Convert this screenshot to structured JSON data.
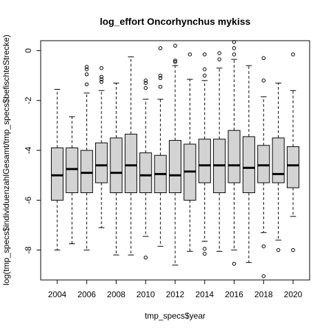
{
  "chart_data": {
    "type": "boxplot",
    "title": "log_effort Oncorhynchus mykiss",
    "xlabel": "tmp_specs$year",
    "ylabel": "log(tmp_specs$individuenzahlGesamt/tmp_specs$befischteStrecke)",
    "categories": [
      2004,
      2005,
      2006,
      2007,
      2008,
      2009,
      2010,
      2011,
      2012,
      2013,
      2014,
      2015,
      2016,
      2017,
      2018,
      2019,
      2020
    ],
    "x_tick_labels": [
      "2004",
      "2006",
      "2008",
      "2010",
      "2012",
      "2014",
      "2016",
      "2018",
      "2020"
    ],
    "y_ticks": [
      0,
      -2,
      -4,
      -6,
      -8
    ],
    "y_tick_labels": [
      "0",
      "-2",
      "-4",
      "-6",
      "-8"
    ],
    "ylim": [
      -9.2,
      0.4
    ],
    "box_color": "#d3d3d3",
    "boxes": [
      {
        "year": 2004,
        "whisker_low": -8.0,
        "q1": -6.0,
        "median": -5.0,
        "q3": -3.9,
        "whisker_high": -1.55,
        "outliers": []
      },
      {
        "year": 2005,
        "whisker_low": -7.75,
        "q1": -5.7,
        "median": -4.75,
        "q3": -3.9,
        "whisker_high": -2.65,
        "outliers": []
      },
      {
        "year": 2006,
        "whisker_low": -8.0,
        "q1": -5.7,
        "median": -4.9,
        "q3": -4.0,
        "whisker_high": -1.7,
        "outliers": [
          -0.65,
          -0.75,
          -0.95,
          -1.35
        ]
      },
      {
        "year": 2007,
        "whisker_low": -7.1,
        "q1": -5.3,
        "median": -4.6,
        "q3": -3.7,
        "whisker_high": -1.6,
        "outliers": [
          -0.7,
          -1.05,
          -1.15,
          -1.25
        ]
      },
      {
        "year": 2008,
        "whisker_low": -8.2,
        "q1": -5.7,
        "median": -4.9,
        "q3": -3.5,
        "whisker_high": -1.3,
        "outliers": []
      },
      {
        "year": 2009,
        "whisker_low": -8.2,
        "q1": -5.7,
        "median": -4.6,
        "q3": -3.35,
        "whisker_high": -0.25,
        "outliers": []
      },
      {
        "year": 2010,
        "whisker_low": -7.45,
        "q1": -5.7,
        "median": -5.0,
        "q3": -4.1,
        "whisker_high": -1.95,
        "outliers": [
          -1.2,
          -1.3,
          -1.5,
          -8.3
        ]
      },
      {
        "year": 2011,
        "whisker_low": -7.85,
        "q1": -5.7,
        "median": -4.95,
        "q3": -4.2,
        "whisker_high": -1.95,
        "outliers": [
          0.1,
          -1.0,
          -1.1,
          -1.45
        ]
      },
      {
        "year": 2012,
        "whisker_low": -8.6,
        "q1": -5.7,
        "median": -5.0,
        "q3": -3.6,
        "whisker_high": -0.6,
        "outliers": [
          0.2,
          -0.4,
          -0.45
        ]
      },
      {
        "year": 2013,
        "whisker_low": -8.05,
        "q1": -6.0,
        "median": -4.85,
        "q3": -3.75,
        "whisker_high": -1.15,
        "outliers": [
          -0.15
        ]
      },
      {
        "year": 2014,
        "whisker_low": -7.65,
        "q1": -5.3,
        "median": -4.6,
        "q3": -3.55,
        "whisker_high": -1.2,
        "outliers": [
          -0.15,
          -0.75,
          -1.0,
          -7.95,
          -8.15
        ]
      },
      {
        "year": 2015,
        "whisker_low": -8.05,
        "q1": -5.7,
        "median": -4.6,
        "q3": -3.55,
        "whisker_high": -0.7,
        "outliers": [
          -0.1,
          -0.35
        ]
      },
      {
        "year": 2016,
        "whisker_low": -8.0,
        "q1": -5.3,
        "median": -4.6,
        "q3": -3.2,
        "whisker_high": -0.35,
        "outliers": [
          0.35,
          0.1,
          -0.15,
          -8.55
        ]
      },
      {
        "year": 2017,
        "whisker_low": -8.5,
        "q1": -5.7,
        "median": -4.7,
        "q3": -3.45,
        "whisker_high": -0.6,
        "outliers": []
      },
      {
        "year": 2018,
        "whisker_low": -7.3,
        "q1": -5.3,
        "median": -4.6,
        "q3": -3.8,
        "whisker_high": -1.85,
        "outliers": [
          -0.3,
          -1.2,
          -7.85,
          -9.05
        ]
      },
      {
        "year": 2019,
        "whisker_low": -7.6,
        "q1": -5.3,
        "median": -4.95,
        "q3": -3.5,
        "whisker_high": -1.3,
        "outliers": [
          -8.0
        ]
      },
      {
        "year": 2020,
        "whisker_low": -6.65,
        "q1": -5.5,
        "median": -4.6,
        "q3": -3.85,
        "whisker_high": -1.6,
        "outliers": [
          -0.15,
          -8.0
        ]
      }
    ]
  }
}
